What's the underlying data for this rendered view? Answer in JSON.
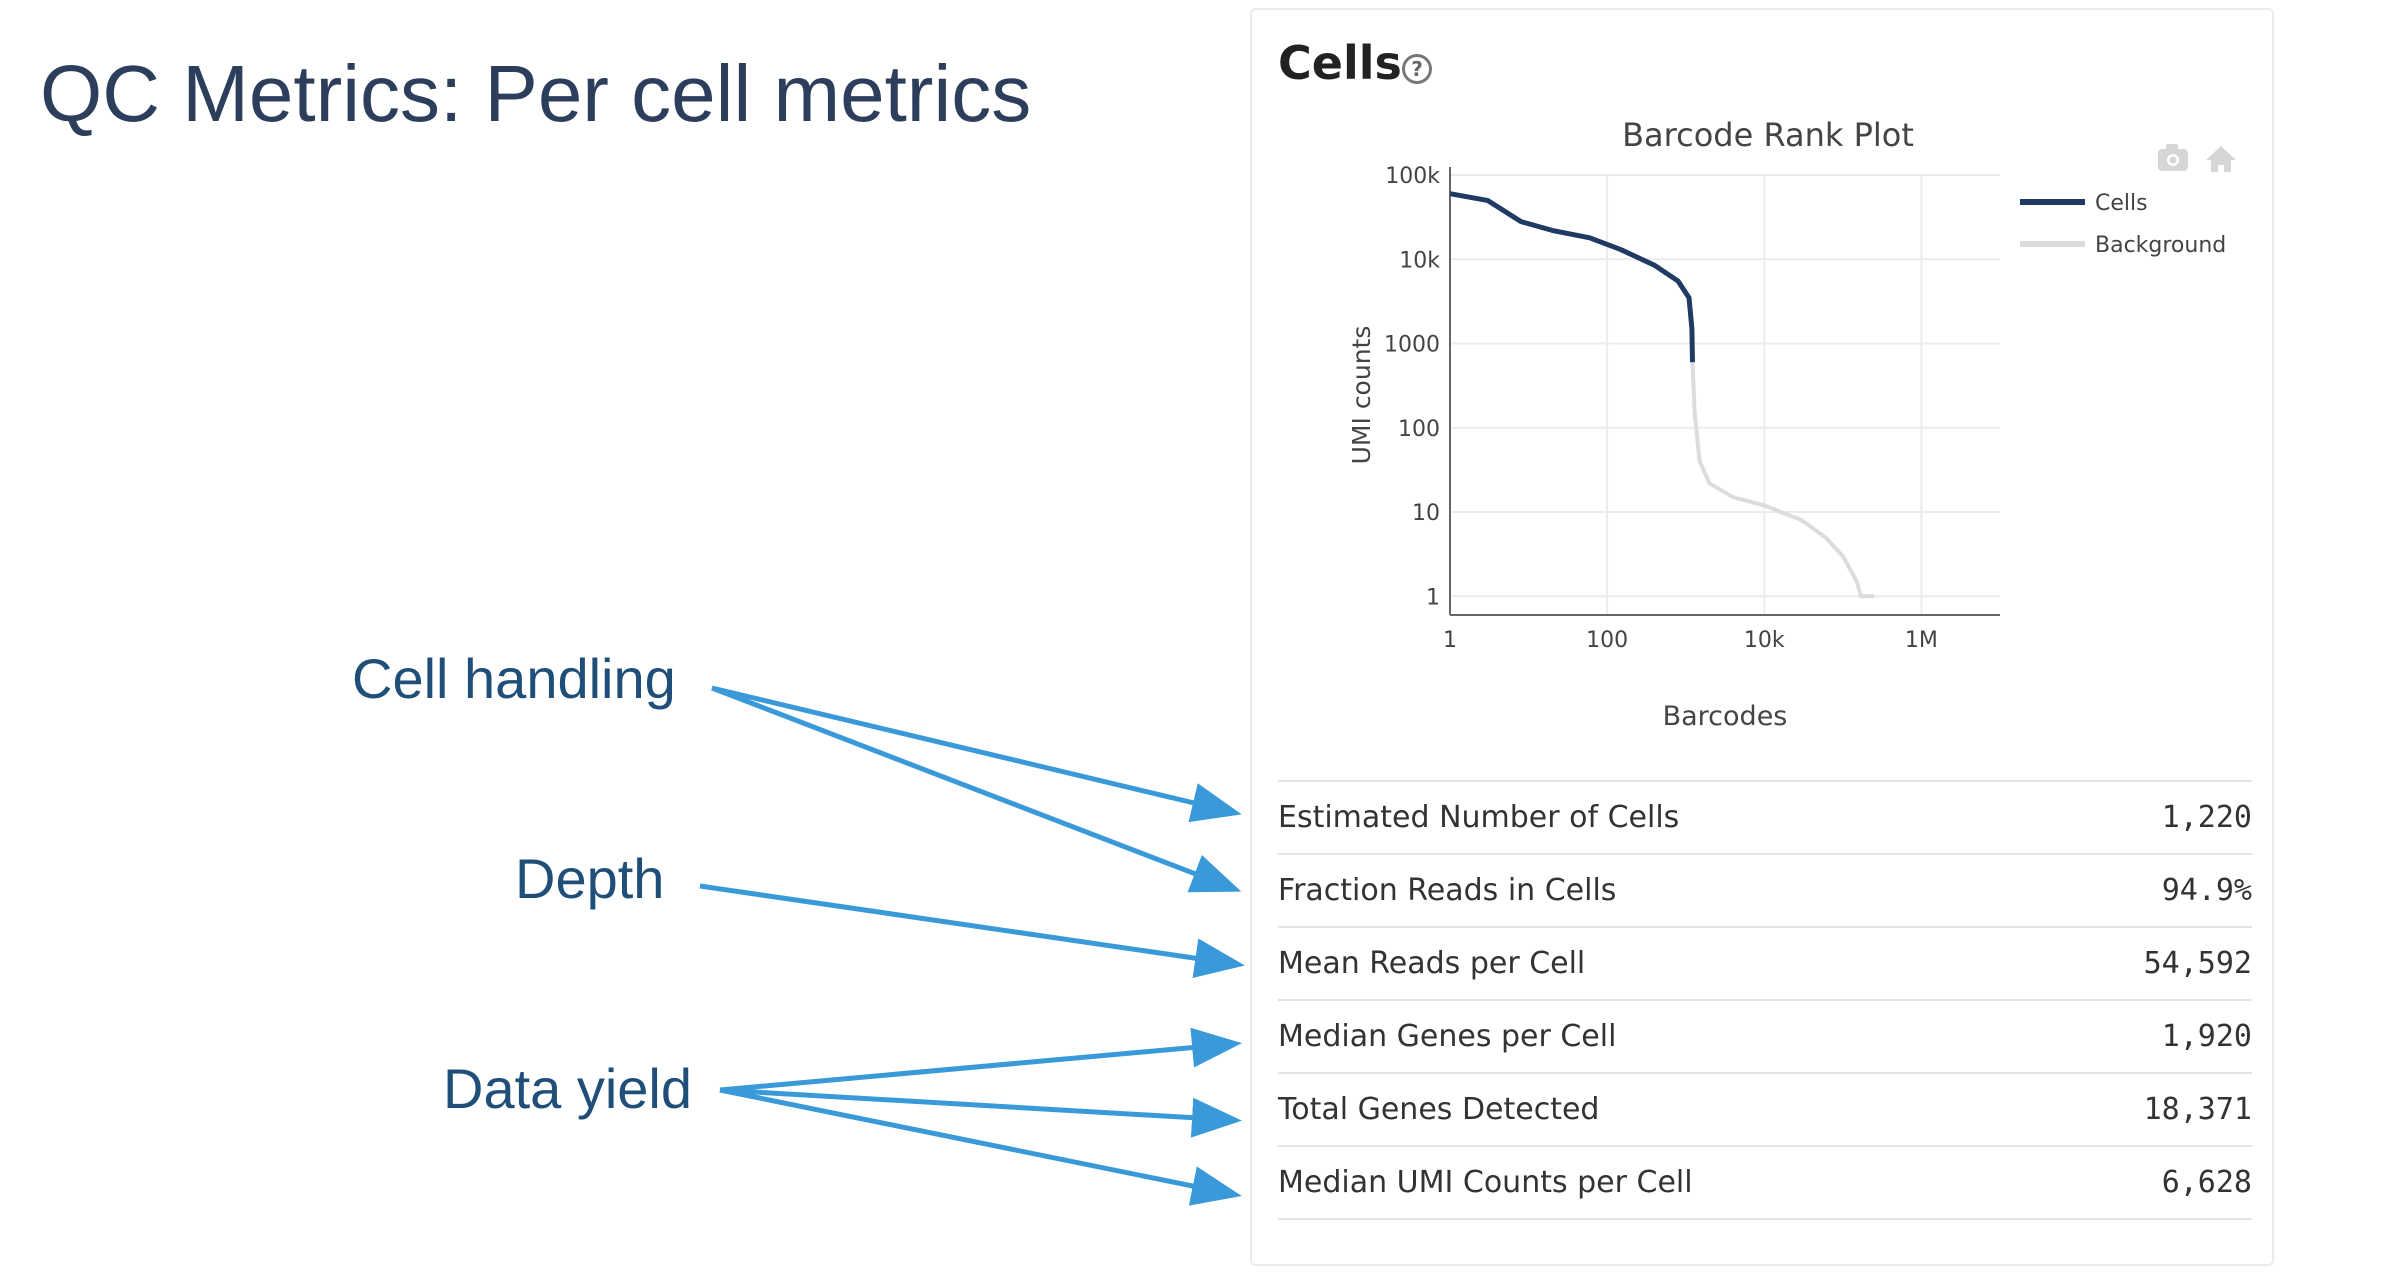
{
  "slide": {
    "title": "QC Metrics: Per cell metrics",
    "annotations": {
      "cell_handling": "Cell handling",
      "depth": "Depth",
      "data_yield": "Data yield"
    },
    "arrow_color": "#3a9ad9"
  },
  "panel": {
    "title": "Cells",
    "help_icon": "question-circle-icon",
    "help_glyph": "?",
    "toolbar_icons": [
      "camera-icon",
      "home-icon"
    ]
  },
  "chart_data": {
    "type": "line",
    "title": "Barcode Rank Plot",
    "xlabel": "Barcodes",
    "ylabel": "UMI counts",
    "xscale": "log",
    "yscale": "log",
    "xlim": [
      1,
      10000000
    ],
    "ylim": [
      0.6,
      100000
    ],
    "x_ticks": [
      {
        "value": 1,
        "label": "1"
      },
      {
        "value": 100,
        "label": "100"
      },
      {
        "value": 10000,
        "label": "10k"
      },
      {
        "value": 1000000,
        "label": "1M"
      }
    ],
    "y_ticks": [
      {
        "value": 1,
        "label": "1"
      },
      {
        "value": 10,
        "label": "10"
      },
      {
        "value": 100,
        "label": "100"
      },
      {
        "value": 1000,
        "label": "1000"
      },
      {
        "value": 10000,
        "label": "10k"
      },
      {
        "value": 100000,
        "label": "100k"
      }
    ],
    "grid": true,
    "legend": "right",
    "series": [
      {
        "name": "Cells",
        "color": "#1f3b63",
        "x": [
          1,
          3,
          8,
          20,
          60,
          150,
          400,
          800,
          1100,
          1200,
          1220
        ],
        "y": [
          60000,
          50000,
          28000,
          22000,
          18000,
          13000,
          8500,
          5500,
          3500,
          1500,
          600
        ]
      },
      {
        "name": "Background",
        "color": "#dcdcdc",
        "x": [
          1220,
          1300,
          1500,
          2000,
          4000,
          10000,
          30000,
          60000,
          100000,
          150000,
          170000,
          250000
        ],
        "y": [
          600,
          150,
          40,
          22,
          15,
          12,
          8,
          5,
          3,
          1.5,
          1,
          1
        ]
      }
    ]
  },
  "metrics": [
    {
      "label": "Estimated Number of Cells",
      "value": "1,220"
    },
    {
      "label": "Fraction Reads in Cells",
      "value": "94.9%"
    },
    {
      "label": "Mean Reads per Cell",
      "value": "54,592"
    },
    {
      "label": "Median Genes per Cell",
      "value": "1,920"
    },
    {
      "label": "Total Genes Detected",
      "value": "18,371"
    },
    {
      "label": "Median UMI Counts per Cell",
      "value": "6,628"
    }
  ]
}
